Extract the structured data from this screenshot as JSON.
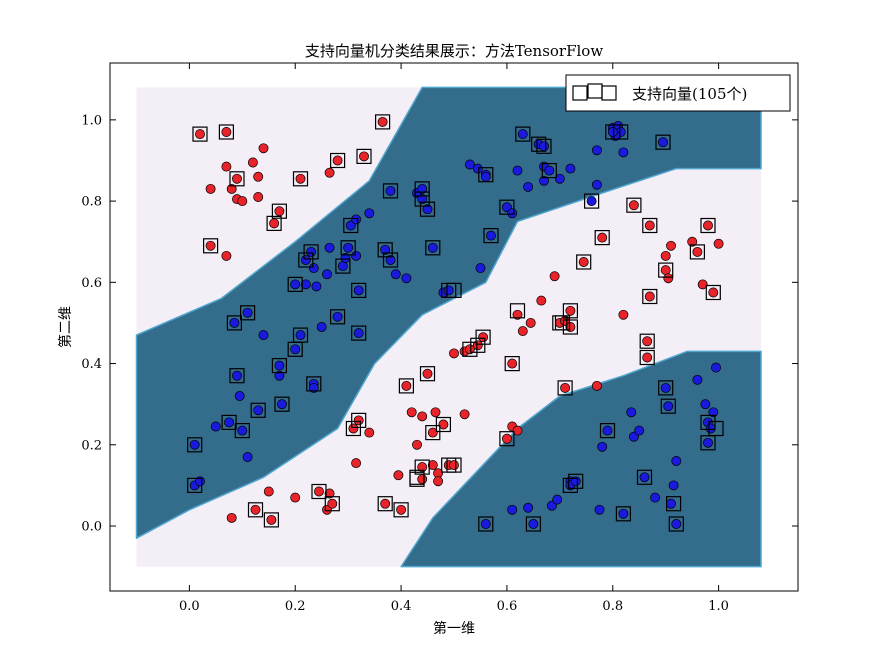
{
  "chart_data": {
    "type": "scatter",
    "title": "支持向量机分类结果展示：方法TensorFlow",
    "xlabel": "第一维",
    "ylabel": "第二维",
    "xlim": [
      -0.15,
      1.15
    ],
    "ylim": [
      -0.16,
      1.14
    ],
    "grid": false,
    "legend_position": "top-right",
    "xticks": [
      0.0,
      0.2,
      0.4,
      0.6,
      0.8,
      1.0
    ],
    "yticks": [
      0.0,
      0.2,
      0.4,
      0.6,
      0.8,
      1.0
    ],
    "tick_labels_x": [
      "0.0",
      "0.2",
      "0.4",
      "0.6",
      "0.8",
      "1.0"
    ],
    "tick_labels_y": [
      "0.0",
      "0.2",
      "0.4",
      "0.6",
      "0.8",
      "1.0"
    ],
    "legend": {
      "label": "支持向量(105个)"
    },
    "colors": {
      "background_light": "#f4eef6",
      "background_dark": "#346c8c",
      "class_red": "#e8242a",
      "class_blue": "#1a1adf",
      "point_edge": "#000000"
    },
    "decision_regions": {
      "x_range": [
        -0.1,
        1.08
      ],
      "y_range": [
        -0.1,
        1.08
      ],
      "dark_band_upper": [
        [
          -0.1,
          0.47
        ],
        [
          0.06,
          0.56
        ],
        [
          0.2,
          0.7
        ],
        [
          0.34,
          0.85
        ],
        [
          0.44,
          1.08
        ],
        [
          1.08,
          1.08
        ],
        [
          1.08,
          0.88
        ],
        [
          0.92,
          0.88
        ],
        [
          0.78,
          0.82
        ],
        [
          0.62,
          0.75
        ],
        [
          0.56,
          0.6
        ],
        [
          0.44,
          0.52
        ],
        [
          0.35,
          0.4
        ],
        [
          0.28,
          0.24
        ],
        [
          0.14,
          0.12
        ],
        [
          0.0,
          0.04
        ],
        [
          -0.1,
          -0.03
        ]
      ],
      "dark_band_lower": [
        [
          0.4,
          -0.1
        ],
        [
          1.08,
          -0.1
        ],
        [
          1.08,
          0.43
        ],
        [
          0.94,
          0.43
        ],
        [
          0.82,
          0.37
        ],
        [
          0.7,
          0.32
        ],
        [
          0.62,
          0.24
        ],
        [
          0.54,
          0.13
        ],
        [
          0.46,
          0.02
        ]
      ]
    },
    "series": [
      {
        "name": "red",
        "points": [
          [
            0.02,
            0.965
          ],
          [
            0.07,
            0.97
          ],
          [
            0.07,
            0.885
          ],
          [
            0.09,
            0.855
          ],
          [
            0.13,
            0.86
          ],
          [
            0.14,
            0.93
          ],
          [
            0.12,
            0.895
          ],
          [
            0.04,
            0.83
          ],
          [
            0.08,
            0.83
          ],
          [
            0.09,
            0.805
          ],
          [
            0.1,
            0.8
          ],
          [
            0.13,
            0.81
          ],
          [
            0.16,
            0.745
          ],
          [
            0.17,
            0.775
          ],
          [
            0.21,
            0.855
          ],
          [
            0.265,
            0.87
          ],
          [
            0.28,
            0.9
          ],
          [
            0.33,
            0.91
          ],
          [
            0.365,
            0.995
          ],
          [
            0.04,
            0.69
          ],
          [
            0.07,
            0.665
          ],
          [
            0.08,
            0.02
          ],
          [
            0.125,
            0.04
          ],
          [
            0.15,
            0.085
          ],
          [
            0.155,
            0.015
          ],
          [
            0.2,
            0.07
          ],
          [
            0.245,
            0.085
          ],
          [
            0.26,
            0.04
          ],
          [
            0.265,
            0.08
          ],
          [
            0.27,
            0.055
          ],
          [
            0.31,
            0.24
          ],
          [
            0.32,
            0.26
          ],
          [
            0.315,
            0.155
          ],
          [
            0.34,
            0.23
          ],
          [
            0.37,
            0.055
          ],
          [
            0.395,
            0.125
          ],
          [
            0.4,
            0.04
          ],
          [
            0.41,
            0.345
          ],
          [
            0.42,
            0.28
          ],
          [
            0.44,
            0.27
          ],
          [
            0.45,
            0.375
          ],
          [
            0.43,
            0.2
          ],
          [
            0.44,
            0.145
          ],
          [
            0.44,
            0.115
          ],
          [
            0.46,
            0.15
          ],
          [
            0.46,
            0.23
          ],
          [
            0.465,
            0.28
          ],
          [
            0.47,
            0.13
          ],
          [
            0.47,
            0.11
          ],
          [
            0.48,
            0.25
          ],
          [
            0.49,
            0.15
          ],
          [
            0.5,
            0.15
          ],
          [
            0.52,
            0.275
          ],
          [
            0.5,
            0.425
          ],
          [
            0.52,
            0.43
          ],
          [
            0.53,
            0.435
          ],
          [
            0.545,
            0.445
          ],
          [
            0.555,
            0.465
          ],
          [
            0.61,
            0.4
          ],
          [
            0.6,
            0.215
          ],
          [
            0.61,
            0.245
          ],
          [
            0.62,
            0.235
          ],
          [
            0.62,
            0.52
          ],
          [
            0.63,
            0.48
          ],
          [
            0.645,
            0.5
          ],
          [
            0.665,
            0.555
          ],
          [
            0.69,
            0.615
          ],
          [
            0.7,
            0.5
          ],
          [
            0.71,
            0.505
          ],
          [
            0.72,
            0.53
          ],
          [
            0.72,
            0.49
          ],
          [
            0.745,
            0.65
          ],
          [
            0.71,
            0.34
          ],
          [
            0.77,
            0.345
          ],
          [
            0.78,
            0.71
          ],
          [
            0.82,
            0.52
          ],
          [
            0.84,
            0.79
          ],
          [
            0.865,
            0.415
          ],
          [
            0.865,
            0.455
          ],
          [
            0.87,
            0.74
          ],
          [
            0.87,
            0.565
          ],
          [
            0.9,
            0.63
          ],
          [
            0.9,
            0.665
          ],
          [
            0.905,
            0.61
          ],
          [
            0.91,
            0.69
          ],
          [
            0.95,
            0.7
          ],
          [
            0.96,
            0.675
          ],
          [
            0.97,
            0.595
          ],
          [
            0.98,
            0.74
          ],
          [
            0.99,
            0.575
          ],
          [
            1.0,
            0.695
          ]
        ]
      },
      {
        "name": "blue",
        "points": [
          [
            0.01,
            0.2
          ],
          [
            0.01,
            0.1
          ],
          [
            0.02,
            0.11
          ],
          [
            0.05,
            0.245
          ],
          [
            0.075,
            0.255
          ],
          [
            0.1,
            0.235
          ],
          [
            0.11,
            0.17
          ],
          [
            0.095,
            0.32
          ],
          [
            0.09,
            0.37
          ],
          [
            0.085,
            0.5
          ],
          [
            0.11,
            0.525
          ],
          [
            0.13,
            0.285
          ],
          [
            0.14,
            0.47
          ],
          [
            0.17,
            0.37
          ],
          [
            0.17,
            0.395
          ],
          [
            0.175,
            0.3
          ],
          [
            0.2,
            0.435
          ],
          [
            0.21,
            0.47
          ],
          [
            0.2,
            0.595
          ],
          [
            0.22,
            0.655
          ],
          [
            0.22,
            0.595
          ],
          [
            0.235,
            0.35
          ],
          [
            0.235,
            0.34
          ],
          [
            0.23,
            0.675
          ],
          [
            0.24,
            0.59
          ],
          [
            0.235,
            0.635
          ],
          [
            0.25,
            0.49
          ],
          [
            0.26,
            0.62
          ],
          [
            0.265,
            0.685
          ],
          [
            0.28,
            0.515
          ],
          [
            0.29,
            0.64
          ],
          [
            0.295,
            0.66
          ],
          [
            0.3,
            0.685
          ],
          [
            0.305,
            0.74
          ],
          [
            0.315,
            0.755
          ],
          [
            0.32,
            0.475
          ],
          [
            0.32,
            0.58
          ],
          [
            0.315,
            0.665
          ],
          [
            0.34,
            0.77
          ],
          [
            0.37,
            0.68
          ],
          [
            0.38,
            0.655
          ],
          [
            0.38,
            0.825
          ],
          [
            0.39,
            0.62
          ],
          [
            0.41,
            0.61
          ],
          [
            0.43,
            0.82
          ],
          [
            0.44,
            0.83
          ],
          [
            0.44,
            0.805
          ],
          [
            0.45,
            0.78
          ],
          [
            0.46,
            0.685
          ],
          [
            0.48,
            0.575
          ],
          [
            0.49,
            0.58
          ],
          [
            0.53,
            0.89
          ],
          [
            0.545,
            0.88
          ],
          [
            0.55,
            0.635
          ],
          [
            0.56,
            0.865
          ],
          [
            0.56,
            0.86
          ],
          [
            0.57,
            0.715
          ],
          [
            0.6,
            0.785
          ],
          [
            0.61,
            0.77
          ],
          [
            0.62,
            0.875
          ],
          [
            0.63,
            0.965
          ],
          [
            0.64,
            0.835
          ],
          [
            0.66,
            0.94
          ],
          [
            0.67,
            0.935
          ],
          [
            0.67,
            0.885
          ],
          [
            0.68,
            0.875
          ],
          [
            0.67,
            0.85
          ],
          [
            0.7,
            0.855
          ],
          [
            0.72,
            0.88
          ],
          [
            0.77,
            0.84
          ],
          [
            0.76,
            0.8
          ],
          [
            0.77,
            0.925
          ],
          [
            0.8,
            0.98
          ],
          [
            0.81,
            0.985
          ],
          [
            0.815,
            0.97
          ],
          [
            0.805,
            0.96
          ],
          [
            0.82,
            0.92
          ],
          [
            0.8,
            0.97
          ],
          [
            0.895,
            0.945
          ],
          [
            0.56,
            0.005
          ],
          [
            0.61,
            0.04
          ],
          [
            0.64,
            0.045
          ],
          [
            0.65,
            0.005
          ],
          [
            0.685,
            0.05
          ],
          [
            0.695,
            0.065
          ],
          [
            0.72,
            0.11
          ],
          [
            0.72,
            0.1
          ],
          [
            0.73,
            0.11
          ],
          [
            0.775,
            0.04
          ],
          [
            0.79,
            0.235
          ],
          [
            0.78,
            0.195
          ],
          [
            0.82,
            0.03
          ],
          [
            0.835,
            0.28
          ],
          [
            0.84,
            0.22
          ],
          [
            0.85,
            0.235
          ],
          [
            0.86,
            0.12
          ],
          [
            0.88,
            0.07
          ],
          [
            0.9,
            0.34
          ],
          [
            0.905,
            0.295
          ],
          [
            0.91,
            0.055
          ],
          [
            0.915,
            0.1
          ],
          [
            0.92,
            0.005
          ],
          [
            0.92,
            0.16
          ],
          [
            0.96,
            0.36
          ],
          [
            0.975,
            0.3
          ],
          [
            0.98,
            0.255
          ],
          [
            0.98,
            0.205
          ],
          [
            0.99,
            0.28
          ],
          [
            0.985,
            0.24
          ],
          [
            0.995,
            0.39
          ]
        ]
      }
    ],
    "support_vectors": [
      [
        0.02,
        0.965
      ],
      [
        0.07,
        0.97
      ],
      [
        0.09,
        0.855
      ],
      [
        0.21,
        0.855
      ],
      [
        0.28,
        0.9
      ],
      [
        0.33,
        0.91
      ],
      [
        0.365,
        0.995
      ],
      [
        0.16,
        0.745
      ],
      [
        0.17,
        0.775
      ],
      [
        0.04,
        0.69
      ],
      [
        0.125,
        0.04
      ],
      [
        0.155,
        0.015
      ],
      [
        0.245,
        0.085
      ],
      [
        0.27,
        0.055
      ],
      [
        0.31,
        0.24
      ],
      [
        0.32,
        0.26
      ],
      [
        0.37,
        0.055
      ],
      [
        0.4,
        0.04
      ],
      [
        0.41,
        0.345
      ],
      [
        0.45,
        0.375
      ],
      [
        0.44,
        0.145
      ],
      [
        0.43,
        0.115
      ],
      [
        0.46,
        0.23
      ],
      [
        0.48,
        0.25
      ],
      [
        0.5,
        0.15
      ],
      [
        0.53,
        0.435
      ],
      [
        0.545,
        0.445
      ],
      [
        0.555,
        0.465
      ],
      [
        0.61,
        0.4
      ],
      [
        0.6,
        0.215
      ],
      [
        0.62,
        0.53
      ],
      [
        0.7,
        0.5
      ],
      [
        0.72,
        0.53
      ],
      [
        0.72,
        0.49
      ],
      [
        0.745,
        0.65
      ],
      [
        0.71,
        0.34
      ],
      [
        0.78,
        0.71
      ],
      [
        0.84,
        0.79
      ],
      [
        0.865,
        0.415
      ],
      [
        0.865,
        0.455
      ],
      [
        0.87,
        0.74
      ],
      [
        0.87,
        0.565
      ],
      [
        0.9,
        0.63
      ],
      [
        0.96,
        0.675
      ],
      [
        0.98,
        0.74
      ],
      [
        0.99,
        0.575
      ],
      [
        0.01,
        0.2
      ],
      [
        0.01,
        0.1
      ],
      [
        0.075,
        0.255
      ],
      [
        0.1,
        0.235
      ],
      [
        0.09,
        0.37
      ],
      [
        0.085,
        0.5
      ],
      [
        0.11,
        0.525
      ],
      [
        0.13,
        0.285
      ],
      [
        0.17,
        0.395
      ],
      [
        0.175,
        0.3
      ],
      [
        0.2,
        0.435
      ],
      [
        0.21,
        0.47
      ],
      [
        0.2,
        0.595
      ],
      [
        0.22,
        0.655
      ],
      [
        0.235,
        0.35
      ],
      [
        0.23,
        0.675
      ],
      [
        0.28,
        0.515
      ],
      [
        0.29,
        0.64
      ],
      [
        0.3,
        0.685
      ],
      [
        0.305,
        0.74
      ],
      [
        0.32,
        0.475
      ],
      [
        0.32,
        0.58
      ],
      [
        0.38,
        0.825
      ],
      [
        0.38,
        0.655
      ],
      [
        0.44,
        0.83
      ],
      [
        0.44,
        0.805
      ],
      [
        0.45,
        0.78
      ],
      [
        0.46,
        0.685
      ],
      [
        0.49,
        0.58
      ],
      [
        0.56,
        0.865
      ],
      [
        0.57,
        0.715
      ],
      [
        0.6,
        0.785
      ],
      [
        0.63,
        0.965
      ],
      [
        0.66,
        0.94
      ],
      [
        0.67,
        0.935
      ],
      [
        0.68,
        0.875
      ],
      [
        0.76,
        0.8
      ],
      [
        0.8,
        0.97
      ],
      [
        0.815,
        0.97
      ],
      [
        0.895,
        0.945
      ],
      [
        0.56,
        0.005
      ],
      [
        0.65,
        0.005
      ],
      [
        0.72,
        0.1
      ],
      [
        0.73,
        0.11
      ],
      [
        0.79,
        0.235
      ],
      [
        0.82,
        0.03
      ],
      [
        0.86,
        0.12
      ],
      [
        0.9,
        0.34
      ],
      [
        0.905,
        0.295
      ],
      [
        0.915,
        0.055
      ],
      [
        0.92,
        0.005
      ],
      [
        0.98,
        0.255
      ],
      [
        0.98,
        0.205
      ],
      [
        0.995,
        0.24
      ],
      [
        0.705,
        0.5
      ],
      [
        0.43,
        0.12
      ],
      [
        0.49,
        0.15
      ],
      [
        0.37,
        0.68
      ],
      [
        0.5,
        0.58
      ]
    ]
  }
}
